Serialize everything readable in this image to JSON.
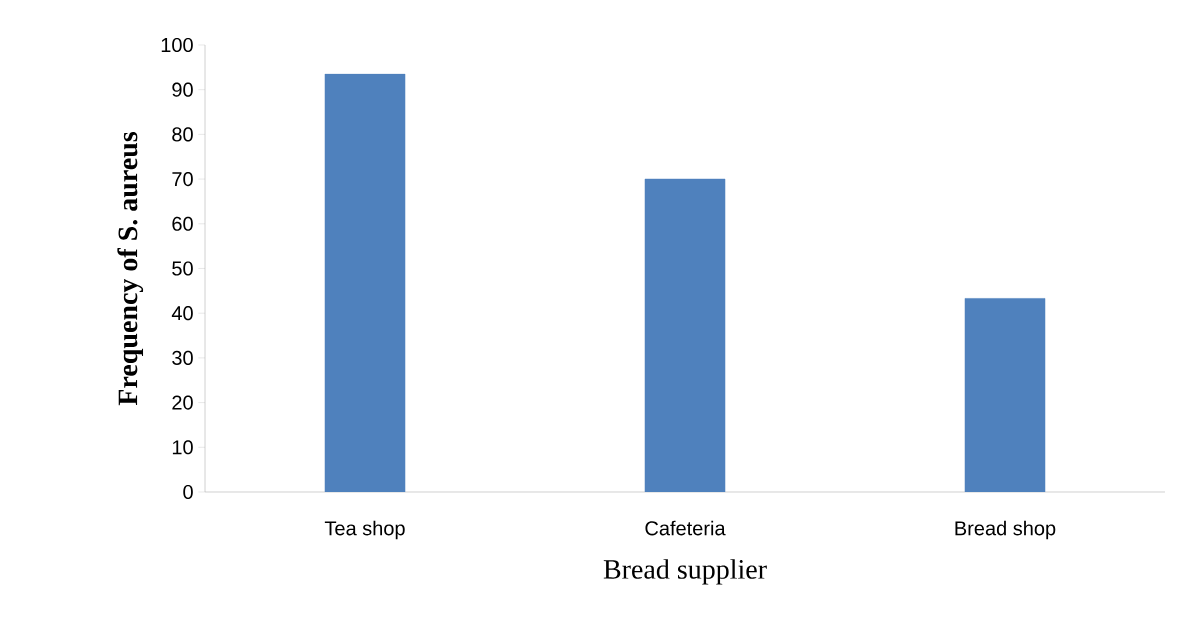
{
  "chart_data": {
    "type": "bar",
    "xlabel": "Bread supplier",
    "ylabel": "Frequency  of S. aureus",
    "categories": [
      "Tea shop",
      "Cafeteria",
      "Bread shop"
    ],
    "values": [
      93.5,
      70,
      43.3
    ],
    "color": "#4f81bd",
    "ylim": [
      0,
      100
    ],
    "yticks": [
      0,
      10,
      20,
      30,
      40,
      50,
      60,
      70,
      80,
      90,
      100
    ],
    "grid": false
  }
}
